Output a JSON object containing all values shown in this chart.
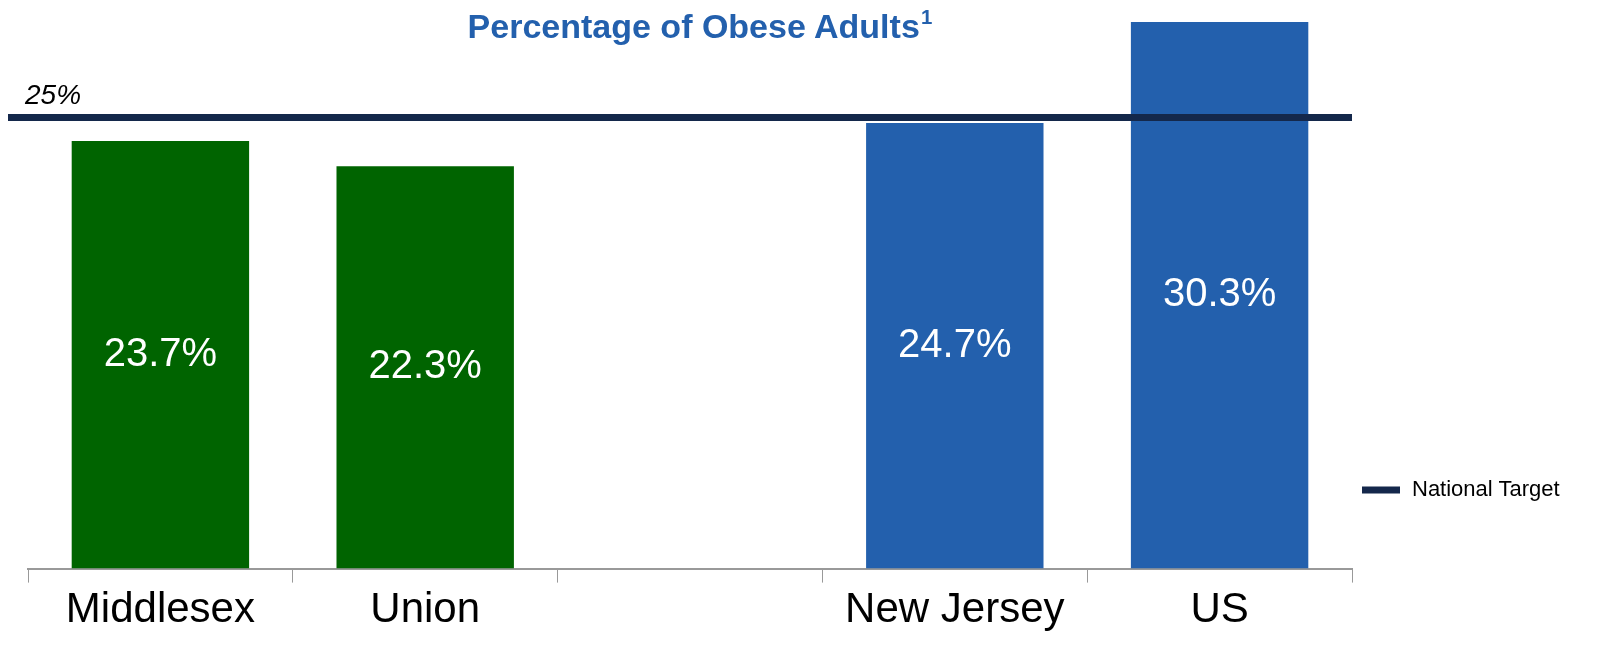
{
  "chart_data": {
    "type": "bar",
    "title": "Percentage of Obese Adults$^{1}$",
    "categories": [
      "Middlesex",
      "Union",
      null,
      "New Jersey",
      "US"
    ],
    "values": [
      23.7,
      22.3,
      null,
      24.7,
      30.3
    ],
    "colors": [
      "#006400",
      "#006400",
      "#2360ad",
      "#2360ad",
      "#2360ad"
    ],
    "value_labels": [
      "23.7%",
      "22.3%",
      null,
      "24.7%",
      "30.3%"
    ],
    "ref_lines": [
      {
        "axis": "y",
        "value": 25,
        "label": "National Target",
        "color": "#14284b"
      }
    ],
    "annotations": [
      {
        "text": "25%",
        "y": 25
      }
    ],
    "legend": "right",
    "grid": false
  }
}
